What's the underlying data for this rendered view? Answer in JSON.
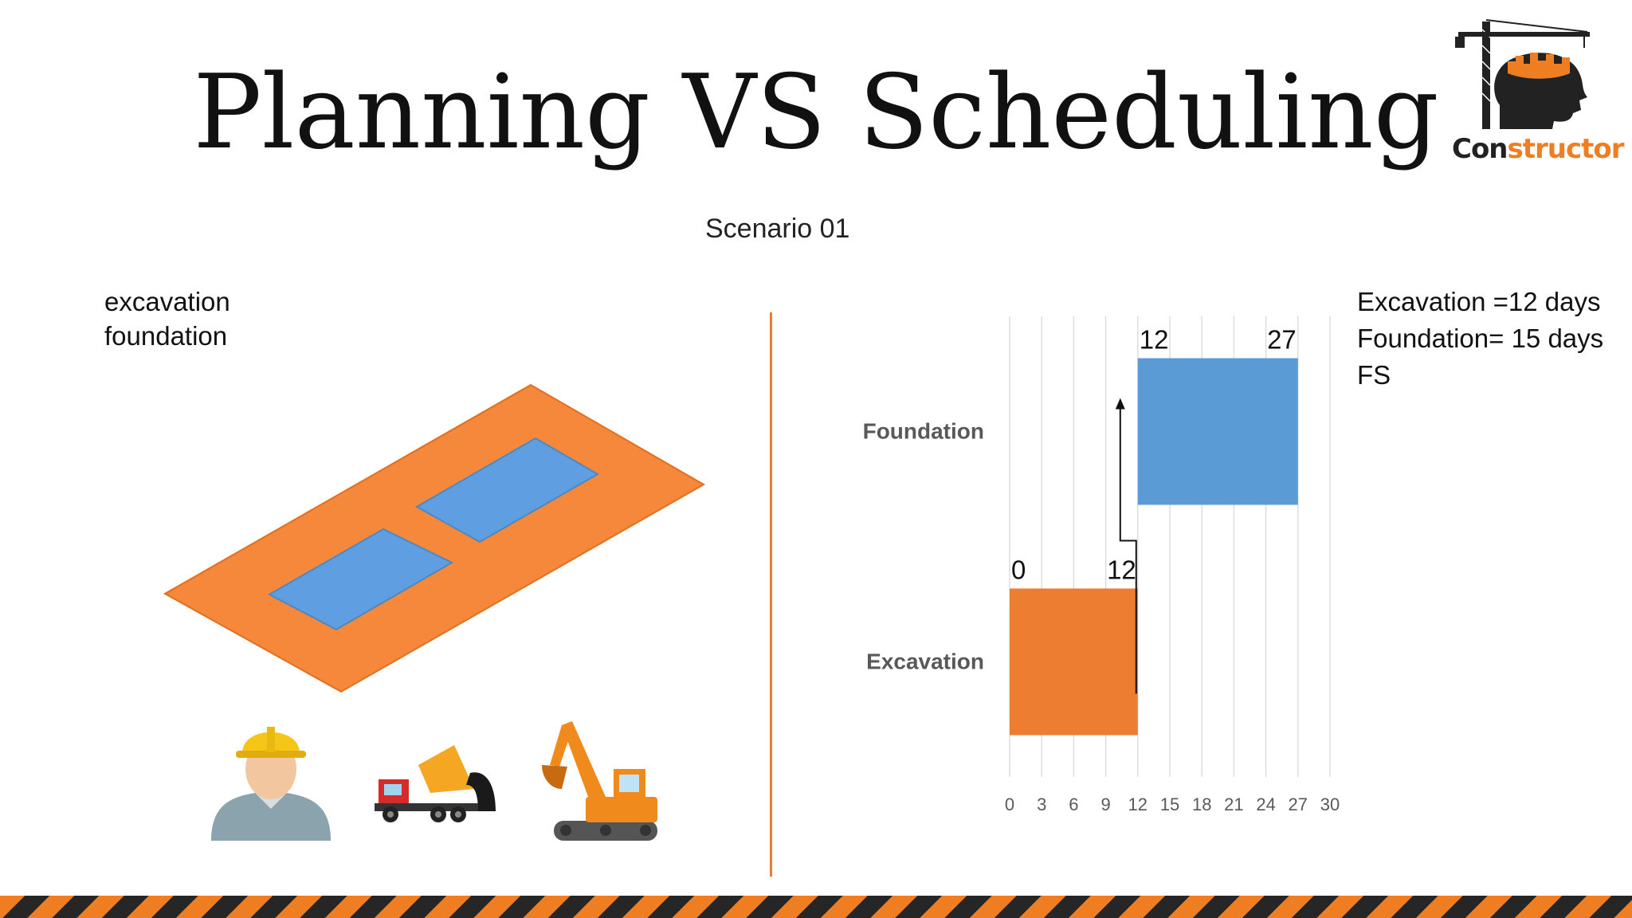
{
  "slide": {
    "title": "Planning VS Scheduling",
    "subtitle": "Scenario 01",
    "activities": [
      "excavation",
      "foundation"
    ],
    "notes": [
      "Excavation =12 days",
      "Foundation= 15 days",
      "FS"
    ]
  },
  "logo": {
    "text_dark": "Con",
    "text_orange": "structor",
    "icon": "crane-head-logo"
  },
  "colors": {
    "accent": "#ed7d31",
    "blue": "#5b9bd5",
    "hazard_dark": "#262626"
  },
  "icons": [
    "worker-icon",
    "dump-truck-icon",
    "excavator-icon"
  ],
  "chart_data": {
    "type": "bar",
    "orientation": "horizontal",
    "subtype": "gantt",
    "categories": [
      "Foundation",
      "Excavation"
    ],
    "series": [
      {
        "category": "Foundation",
        "start": 12,
        "end": 27,
        "color": "#5b9bd5"
      },
      {
        "category": "Excavation",
        "start": 0,
        "end": 12,
        "color": "#ed7d31"
      }
    ],
    "xlim": [
      0,
      30
    ],
    "xticks": [
      0,
      3,
      6,
      9,
      12,
      15,
      18,
      21,
      24,
      27,
      30
    ],
    "grid": "vertical",
    "annotations": [
      {
        "text": "12",
        "at": 12,
        "bar": "Foundation",
        "side": "start"
      },
      {
        "text": "27",
        "at": 27,
        "bar": "Foundation",
        "side": "end"
      },
      {
        "text": "0",
        "at": 0,
        "bar": "Excavation",
        "side": "start"
      },
      {
        "text": "12",
        "at": 12,
        "bar": "Excavation",
        "side": "end"
      }
    ],
    "dependency": {
      "type": "FS",
      "from": "Excavation",
      "to": "Foundation"
    }
  }
}
